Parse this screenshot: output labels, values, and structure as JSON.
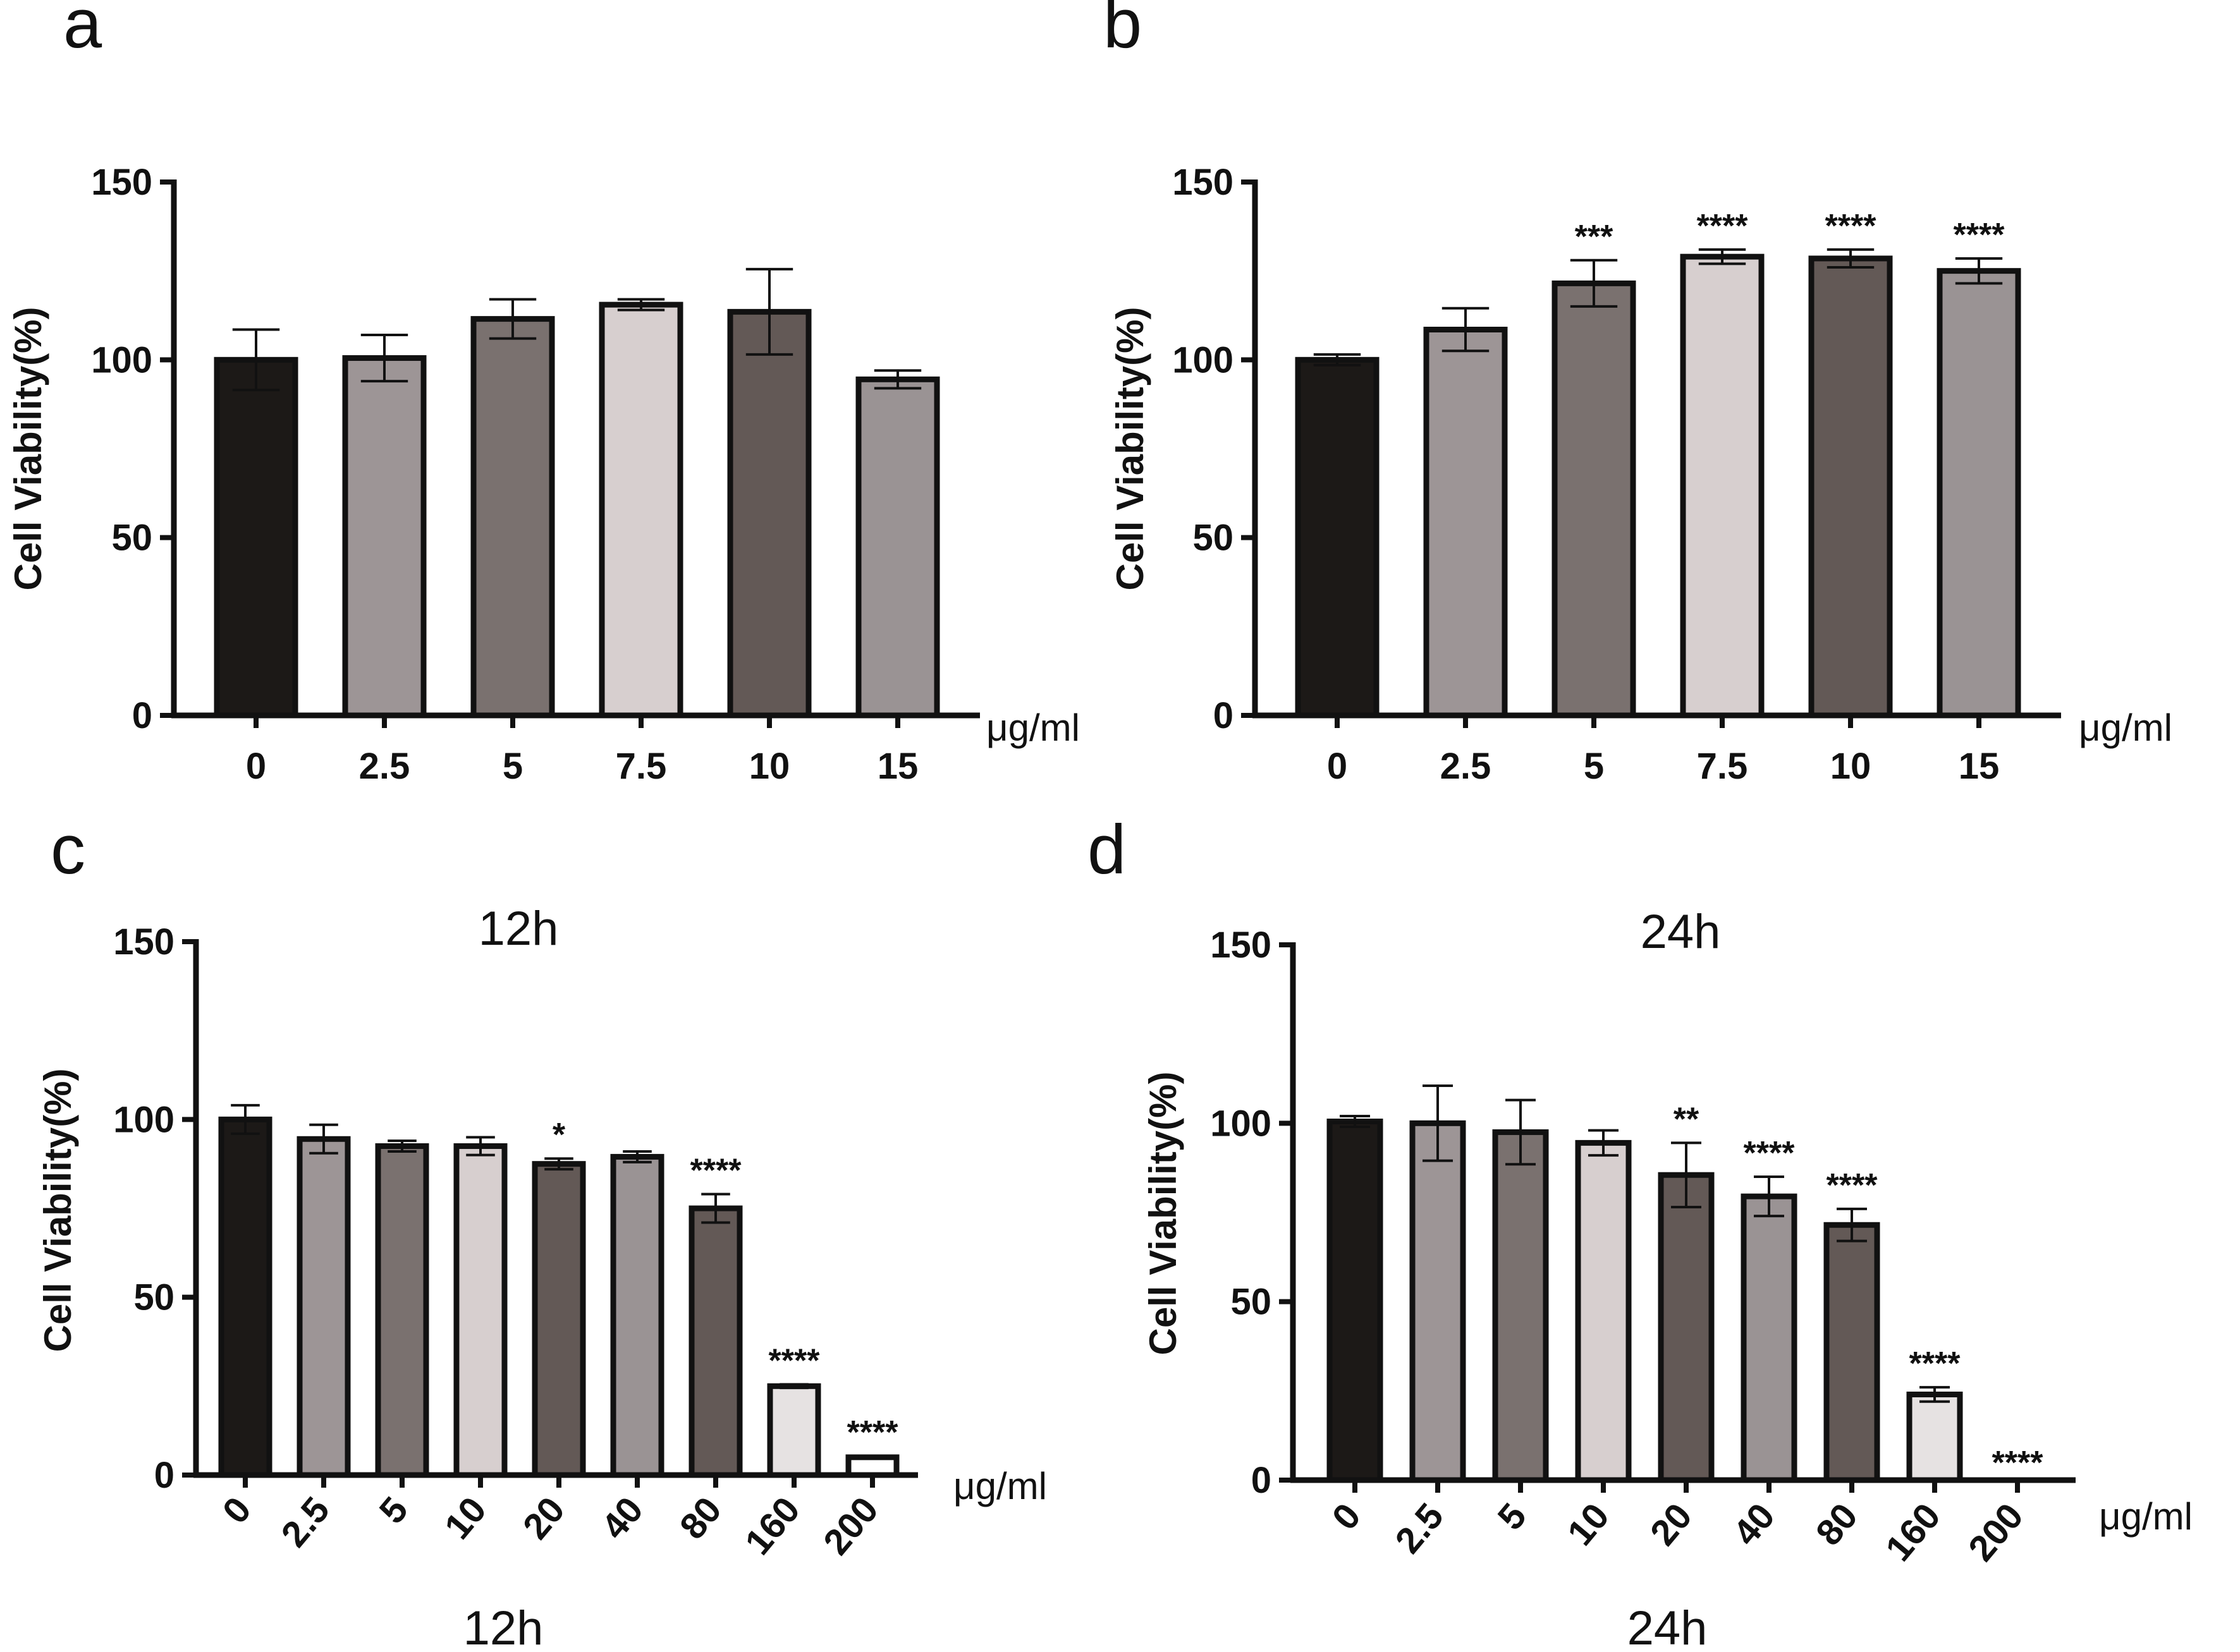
{
  "colors": {
    "axis": "#111111",
    "bar_outline": "#111111",
    "palette_6": [
      "#1c1917",
      "#9d9596",
      "#7a716f",
      "#d7cfcf",
      "#635956",
      "#9a9394"
    ],
    "palette_9": [
      "#1c1917",
      "#9d9596",
      "#7a716f",
      "#d7cfcf",
      "#635956",
      "#9a9394",
      "#635956",
      "#e6e2e2",
      "#ffffff"
    ]
  },
  "chart_data": [
    {
      "panel": "a",
      "type": "bar",
      "title": "",
      "xlabel": "",
      "ylabel": "Cell Viability(%)",
      "unit": "μg/ml",
      "ylim": [
        0,
        150
      ],
      "yticks": [
        "0",
        "50",
        "100",
        "150"
      ],
      "categories": [
        "0",
        "2.5",
        "5",
        "7.5",
        "10",
        "15"
      ],
      "values": [
        100,
        100.5,
        111.5,
        115.5,
        113.5,
        94.5
      ],
      "errors": [
        8.5,
        6.5,
        5.5,
        1.5,
        12,
        2.5
      ],
      "significance": [
        "",
        "",
        "",
        "",
        "",
        ""
      ],
      "rotated_ticks": false
    },
    {
      "panel": "b",
      "type": "bar",
      "title": "",
      "xlabel": "",
      "ylabel": "Cell Viability(%)",
      "unit": "μg/ml",
      "ylim": [
        0,
        150
      ],
      "yticks": [
        "0",
        "50",
        "100",
        "150"
      ],
      "categories": [
        "0",
        "2.5",
        "5",
        "7.5",
        "10",
        "15"
      ],
      "values": [
        100,
        108.5,
        121.5,
        129,
        128.5,
        125
      ],
      "errors": [
        1.5,
        6,
        6.5,
        2,
        2.5,
        3.5
      ],
      "significance": [
        "",
        "",
        "***",
        "****",
        "****",
        "****"
      ],
      "rotated_ticks": false
    },
    {
      "panel": "c",
      "type": "bar",
      "title": "12h",
      "xlabel": "12h",
      "ylabel": "Cell Viability(%)",
      "unit": "μg/ml",
      "ylim": [
        0,
        150
      ],
      "yticks": [
        "0",
        "50",
        "100",
        "150"
      ],
      "categories": [
        "0",
        "2.5",
        "5",
        "10",
        "20",
        "40",
        "80",
        "160",
        "200"
      ],
      "values": [
        100,
        94.5,
        92.5,
        92.5,
        87.5,
        89.5,
        75,
        25,
        5
      ],
      "errors": [
        4,
        4,
        1.5,
        2.5,
        1.5,
        1.5,
        4,
        0.5,
        0.3
      ],
      "significance": [
        "",
        "",
        "",
        "",
        "*",
        "",
        "****",
        "****",
        "****"
      ],
      "rotated_ticks": true
    },
    {
      "panel": "d",
      "type": "bar",
      "title": "24h",
      "xlabel": "24h",
      "ylabel": "Cell Viability(%)",
      "unit": "μg/ml",
      "ylim": [
        0,
        150
      ],
      "yticks": [
        "0",
        "50",
        "100",
        "150"
      ],
      "categories": [
        "0",
        "2.5",
        "5",
        "10",
        "20",
        "40",
        "80",
        "160",
        "200"
      ],
      "values": [
        100.5,
        100,
        97.5,
        94.5,
        85.5,
        79.5,
        71.5,
        24,
        0
      ],
      "errors": [
        1.5,
        10.5,
        9,
        3.5,
        9,
        5.5,
        4.5,
        2,
        0
      ],
      "significance": [
        "",
        "",
        "",
        "",
        "**",
        "****",
        "****",
        "****",
        "****"
      ],
      "rotated_ticks": true
    }
  ]
}
